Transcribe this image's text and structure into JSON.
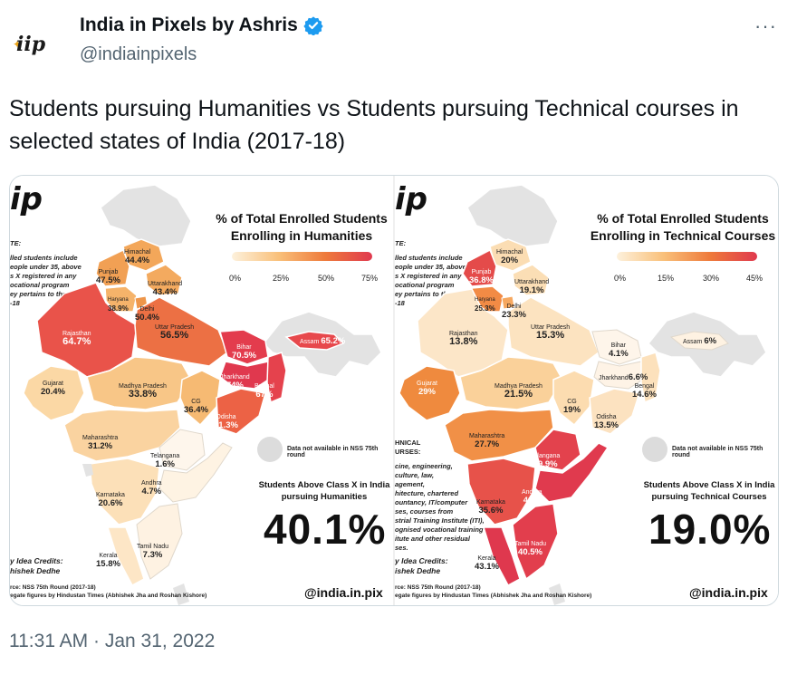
{
  "tweet": {
    "author_name": "India in Pixels by Ashris",
    "author_handle": "@indiainpixels",
    "avatar_text": "iip",
    "text": "Students pursuing Humanities vs Students pursuing Technical courses in selected states of India (2017-18)",
    "timestamp": "11:31 AM · Jan 31, 2022",
    "more_label": "···"
  },
  "left_panel": {
    "logo": "ip",
    "legend_title": "% of Total Enrolled Students Enrolling in Humanities",
    "ticks": [
      "0%",
      "25%",
      "50%",
      "75%"
    ],
    "gradient": [
      "#fdf1dc",
      "#f9c07a",
      "#ee7a3b",
      "#e0394e"
    ],
    "side_note_head": "TE:",
    "side_note": "lled students include\neople under 35, above\ns X registered in any\nocational program",
    "side_note_2": "ey pertains to the year\n-18",
    "na_text": "Data not available in NSS 75th round",
    "stat_caption": "Students Above Class X in India pursuing Humanities",
    "stat_value": "40.1%",
    "credit": "y Idea Credits:\nhishek Dedhe",
    "source": "rce: NSS 75th Round (2017-18)\negate figures by Hindustan Times (Abhishek Jha and Roshan Kishore)",
    "brand": "@india.in.pix",
    "states": [
      {
        "name": "Himachal",
        "value": "44.4%"
      },
      {
        "name": "Punjab",
        "value": "47.5%"
      },
      {
        "name": "Uttarakhand",
        "value": "43.4%"
      },
      {
        "name": "Haryana",
        "value": "38.9%"
      },
      {
        "name": "Delhi",
        "value": "50.4%"
      },
      {
        "name": "Rajasthan",
        "value": "64.7%"
      },
      {
        "name": "Uttar Pradesh",
        "value": "56.5%"
      },
      {
        "name": "Bihar",
        "value": "70.5%"
      },
      {
        "name": "Assam",
        "value": "65.2%"
      },
      {
        "name": "Gujarat",
        "value": "20.4%"
      },
      {
        "name": "Madhya Pradesh",
        "value": "33.8%"
      },
      {
        "name": "Jharkhand",
        "value": "74%"
      },
      {
        "name": "Bengal",
        "value": "67%"
      },
      {
        "name": "CG",
        "value": "36.4%"
      },
      {
        "name": "Odisha",
        "value": "61.3%"
      },
      {
        "name": "Maharashtra",
        "value": "31.2%"
      },
      {
        "name": "Telangana",
        "value": "1.6%"
      },
      {
        "name": "Andhra",
        "value": "4.7%"
      },
      {
        "name": "Karnataka",
        "value": "20.6%"
      },
      {
        "name": "Tamil Nadu",
        "value": "7.3%"
      },
      {
        "name": "Kerala",
        "value": "15.8%"
      }
    ]
  },
  "right_panel": {
    "logo": "ip",
    "legend_title": "% of Total Enrolled Students Enrolling in Technical Courses",
    "ticks": [
      "0%",
      "15%",
      "30%",
      "45%"
    ],
    "gradient": [
      "#fdf1dc",
      "#f9c07a",
      "#ee7a3b",
      "#e0394e"
    ],
    "side_note_head": "TE:",
    "side_note": "lled students include\neople under 35, above\ns X registered in any\nocational program",
    "side_note_2": "ey pertains to the year\n-18",
    "tech_head": "HNICAL\nURSES:",
    "tech_note": "cine, engineering,\nculture, law,\nagement,\nhitecture, chartered\nountancy, IT/computer\nses, courses from\nstrial Training Institute (ITI),\nognised vocational training\nitute and other residual\nses.",
    "na_text": "Data not available in NSS 75th round",
    "stat_caption": "Students Above Class X in India pursuing Technical Courses",
    "stat_value": "19.0%",
    "credit": "y Idea Credits:\nishek Dedhe",
    "source": "rce: NSS 75th Round (2017-18)\negate figures by Hindustan Times (Abhishek Jha and Roshan Kishore)",
    "brand": "@india.in.pix",
    "states": [
      {
        "name": "Himachal",
        "value": "20%"
      },
      {
        "name": "Punjab",
        "value": "36.8%"
      },
      {
        "name": "Uttarakhand",
        "value": "19.1%"
      },
      {
        "name": "Haryana",
        "value": "25.3%"
      },
      {
        "name": "Delhi",
        "value": "23.3%"
      },
      {
        "name": "Rajasthan",
        "value": "13.8%"
      },
      {
        "name": "Uttar Pradesh",
        "value": "15.3%"
      },
      {
        "name": "Bihar",
        "value": "4.1%"
      },
      {
        "name": "Assam",
        "value": "6%"
      },
      {
        "name": "Gujarat",
        "value": "29%"
      },
      {
        "name": "Madhya Pradesh",
        "value": "21.5%"
      },
      {
        "name": "Jharkhand",
        "value": "6.6%"
      },
      {
        "name": "Bengal",
        "value": "14.6%"
      },
      {
        "name": "CG",
        "value": "19%"
      },
      {
        "name": "Odisha",
        "value": "13.5%"
      },
      {
        "name": "Maharashtra",
        "value": "27.7%"
      },
      {
        "name": "Telangana",
        "value": "39.9%"
      },
      {
        "name": "Andhra",
        "value": "42%"
      },
      {
        "name": "Karnataka",
        "value": "35.6%"
      },
      {
        "name": "Tamil Nadu",
        "value": "40.5%"
      },
      {
        "name": "Kerala",
        "value": "43.1%"
      }
    ]
  }
}
